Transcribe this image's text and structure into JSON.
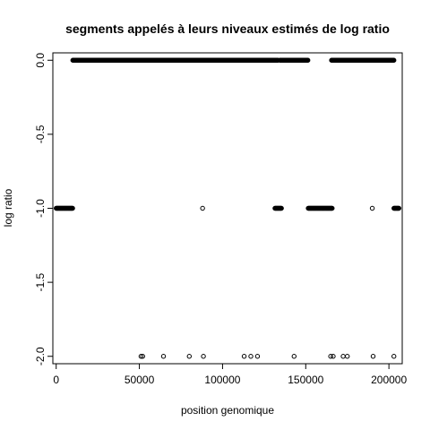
{
  "chart_data": {
    "type": "scatter",
    "title": "segments appelés à leurs niveaux estimés de log ratio",
    "xlabel": "position genomique",
    "ylabel": "log ratio",
    "xlim": [
      -2000,
      208000
    ],
    "ylim": [
      -2.05,
      0.05
    ],
    "x_ticks": [
      0,
      50000,
      100000,
      150000,
      200000
    ],
    "x_tick_labels": [
      "0",
      "50000",
      "100000",
      "150000",
      "200000"
    ],
    "y_ticks": [
      0,
      -0.5,
      -1,
      -1.5,
      -2
    ],
    "y_tick_labels": [
      "0.0",
      "-0.5",
      "-1.0",
      "-1.5",
      "-2.0"
    ],
    "grid": false,
    "marker": "open-circle",
    "dense_runs": [
      {
        "y": -1,
        "x_start": 0,
        "x_end": 10000
      },
      {
        "y": 0,
        "x_start": 10000,
        "x_end": 133500
      },
      {
        "y": -1,
        "x_start": 131500,
        "x_end": 135500
      },
      {
        "y": 0,
        "x_start": 134500,
        "x_end": 151500
      },
      {
        "y": -1,
        "x_start": 151500,
        "x_end": 166000
      },
      {
        "y": 0,
        "x_start": 165500,
        "x_end": 203000
      },
      {
        "y": -1,
        "x_start": 203000,
        "x_end": 206000
      }
    ],
    "points": [
      {
        "x": 51000,
        "y": -2
      },
      {
        "x": 52000,
        "y": -2
      },
      {
        "x": 64500,
        "y": -2
      },
      {
        "x": 80000,
        "y": -2
      },
      {
        "x": 88000,
        "y": -1
      },
      {
        "x": 88500,
        "y": -2
      },
      {
        "x": 113000,
        "y": -2
      },
      {
        "x": 117000,
        "y": -2
      },
      {
        "x": 121000,
        "y": -2
      },
      {
        "x": 143000,
        "y": -2
      },
      {
        "x": 165000,
        "y": -2
      },
      {
        "x": 166500,
        "y": -2
      },
      {
        "x": 172500,
        "y": -2
      },
      {
        "x": 175000,
        "y": -2
      },
      {
        "x": 190000,
        "y": -1
      },
      {
        "x": 190500,
        "y": -2
      },
      {
        "x": 203000,
        "y": -2
      }
    ]
  }
}
